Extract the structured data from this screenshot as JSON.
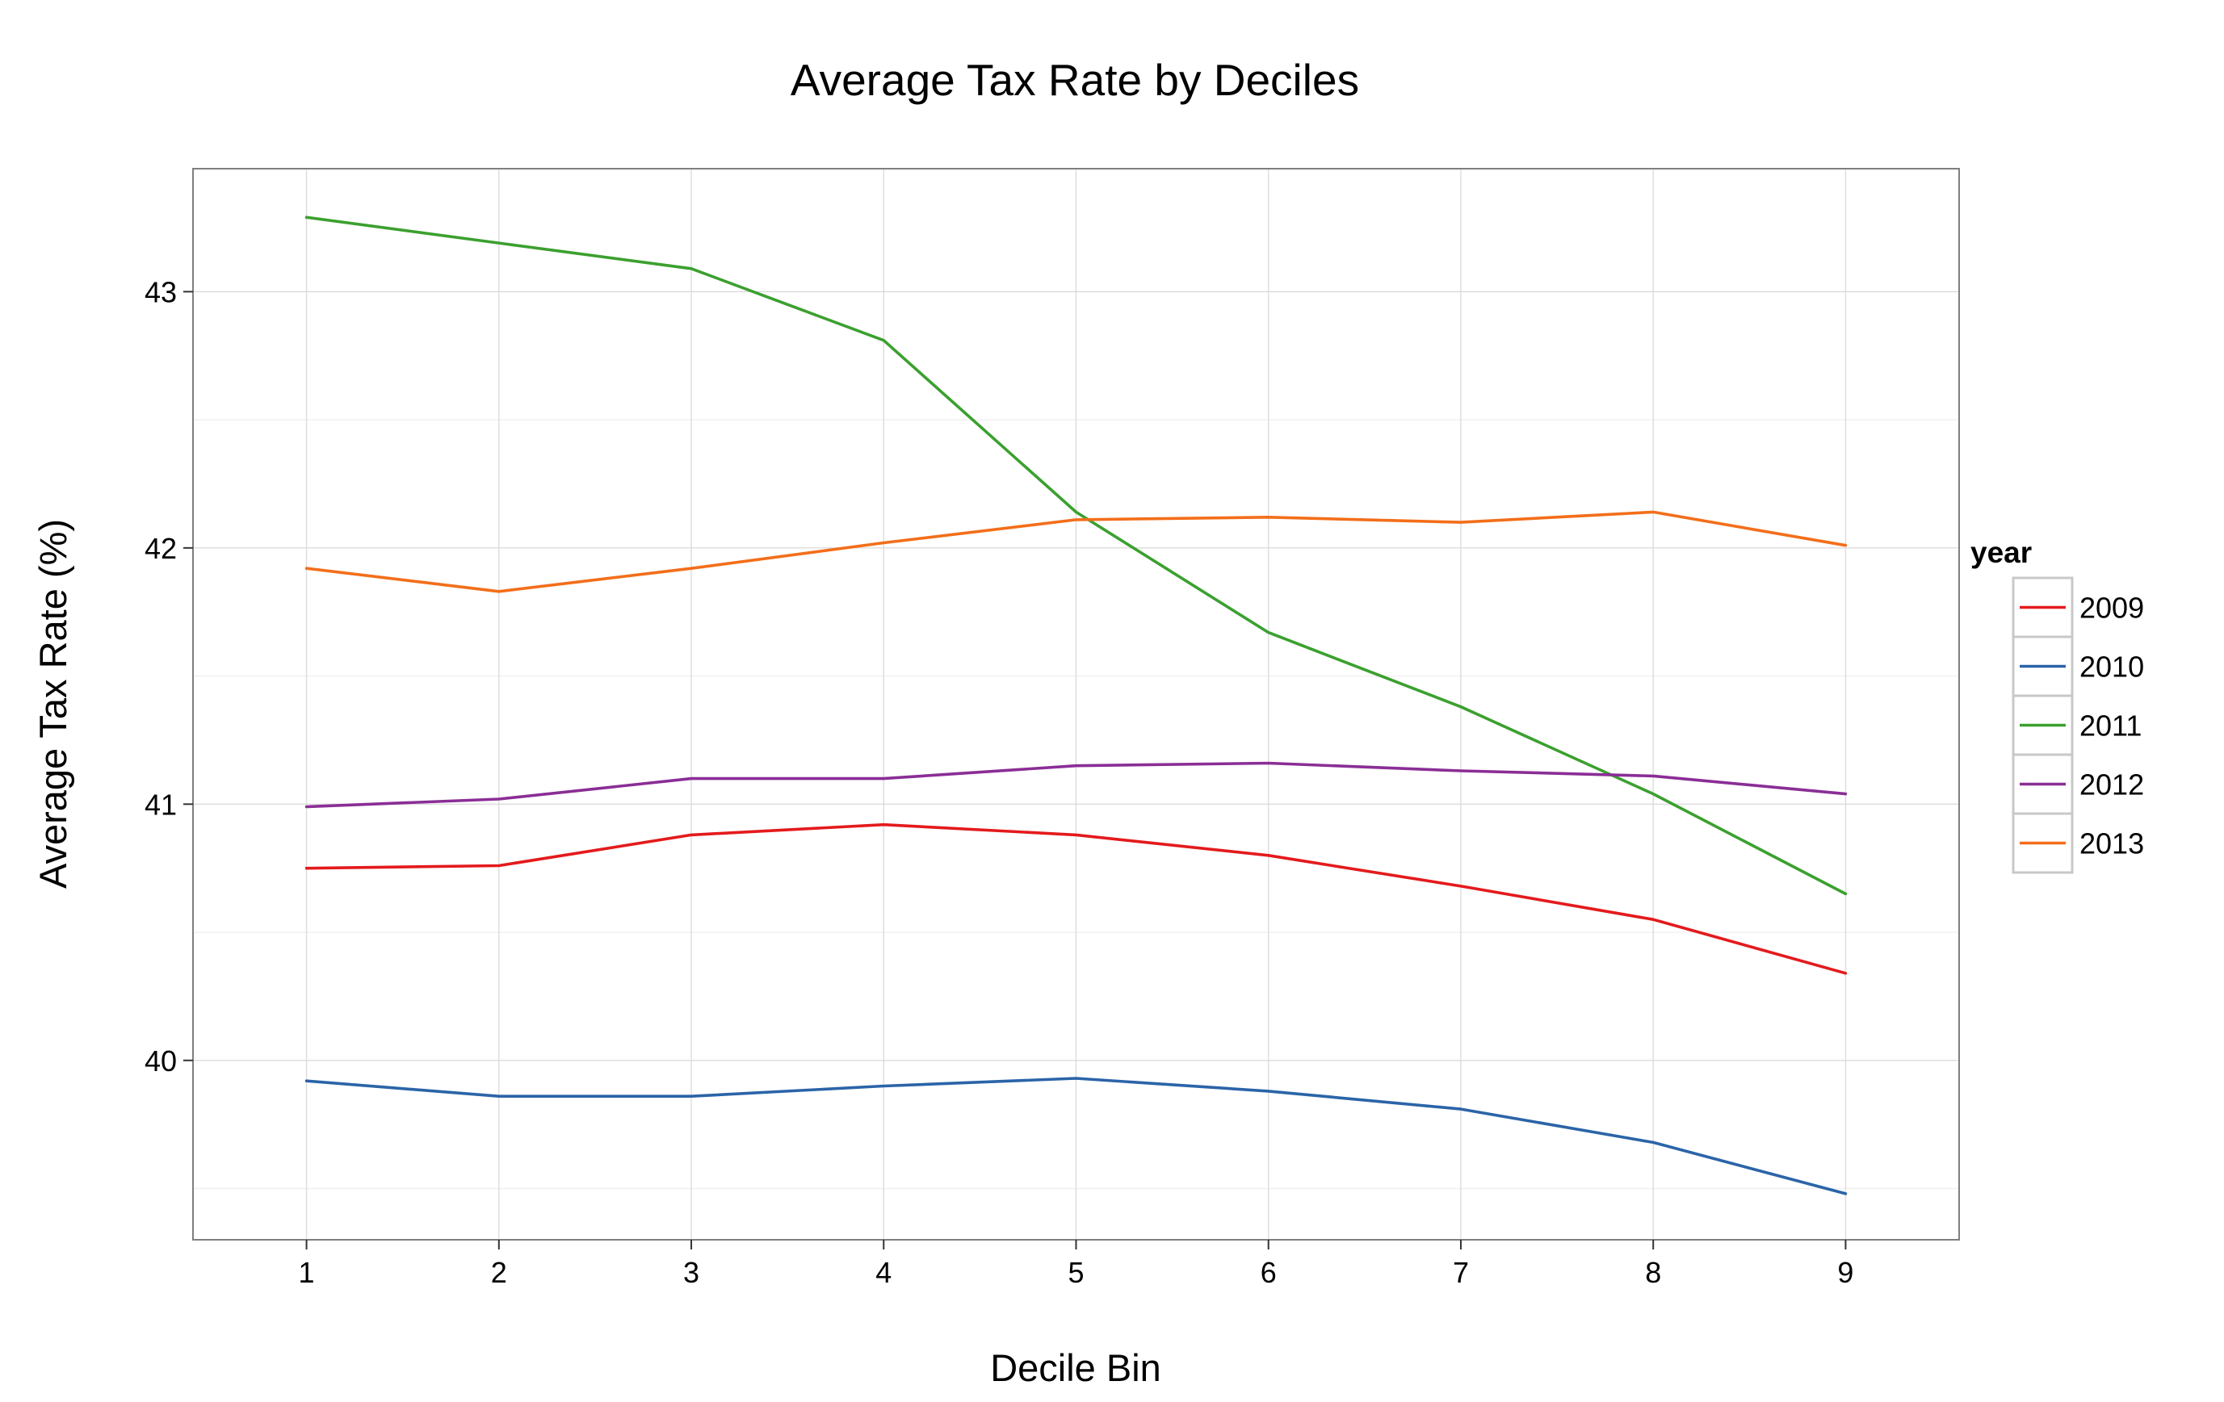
{
  "chart_data": {
    "type": "line",
    "title": "Average Tax Rate by Deciles",
    "xlabel": "Decile Bin",
    "ylabel": "Average Tax Rate (%)",
    "x": [
      1,
      2,
      3,
      4,
      5,
      6,
      7,
      8,
      9
    ],
    "x_ticks": [
      "1",
      "2",
      "3",
      "4",
      "5",
      "6",
      "7",
      "8",
      "9"
    ],
    "y_ticks": [
      40,
      41,
      42,
      43
    ],
    "y_tick_labels": [
      "40",
      "41",
      "42",
      "43"
    ],
    "xlim": [
      0.41,
      9.59
    ],
    "ylim": [
      39.3,
      43.48
    ],
    "grid": true,
    "legend": {
      "title": "year",
      "position": "right"
    },
    "series": [
      {
        "name": "2009",
        "color": "#e41a1c",
        "values": [
          40.75,
          40.76,
          40.88,
          40.92,
          40.88,
          40.8,
          40.68,
          40.55,
          40.34
        ]
      },
      {
        "name": "2010",
        "color": "#2b64a8",
        "values": [
          39.92,
          39.86,
          39.86,
          39.9,
          39.93,
          39.88,
          39.81,
          39.68,
          39.48
        ]
      },
      {
        "name": "2011",
        "color": "#3ba02f",
        "values": [
          43.29,
          43.19,
          43.09,
          42.81,
          42.14,
          41.67,
          41.38,
          41.04,
          40.65
        ]
      },
      {
        "name": "2012",
        "color": "#8a2e96",
        "values": [
          40.99,
          41.02,
          41.1,
          41.1,
          41.15,
          41.16,
          41.13,
          41.11,
          41.04
        ]
      },
      {
        "name": "2013",
        "color": "#f36e1a",
        "values": [
          41.92,
          41.83,
          41.92,
          42.02,
          42.11,
          42.12,
          42.1,
          42.14,
          42.01
        ]
      }
    ]
  }
}
